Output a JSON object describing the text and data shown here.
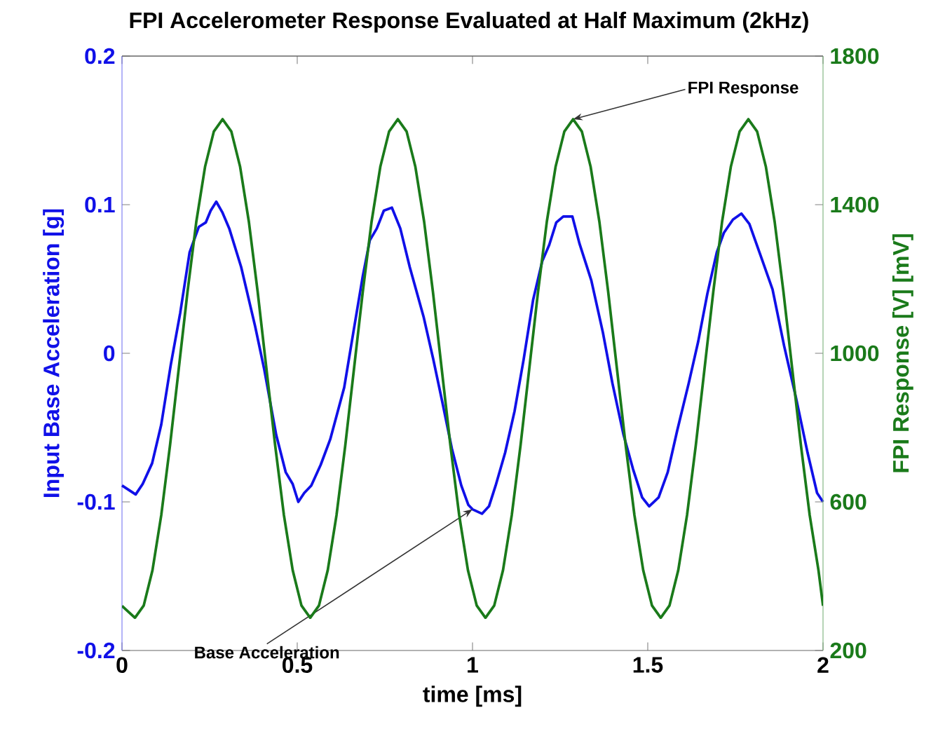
{
  "chart_data": {
    "type": "line",
    "title": "FPI Accelerometer Response Evaluated at Half Maximum (2kHz)",
    "xlabel": "time [ms]",
    "ylabel": "Input Base Acceleration [g]",
    "y2label": "FPI Response [V] [mV]",
    "xlim": [
      0,
      2
    ],
    "xticks": [
      0,
      0.5,
      1,
      1.5,
      2
    ],
    "ylim": [
      -0.2,
      0.2
    ],
    "yticks": [
      -0.2,
      -0.1,
      0,
      0.1,
      0.2
    ],
    "y2lim": [
      200,
      1800
    ],
    "y2ticks": [
      200,
      600,
      1000,
      1400,
      1800
    ],
    "grid": false,
    "marker": "none",
    "line_style": "solid",
    "series": [
      {
        "color": "#1010e8",
        "x": [
          0,
          0.039,
          0.059,
          0.086,
          0.112,
          0.139,
          0.166,
          0.193,
          0.219,
          0.239,
          0.253,
          0.269,
          0.286,
          0.306,
          0.34,
          0.38,
          0.406,
          0.44,
          0.467,
          0.487,
          0.503,
          0.52,
          0.54,
          0.567,
          0.594,
          0.634,
          0.66,
          0.687,
          0.707,
          0.727,
          0.747,
          0.77,
          0.794,
          0.821,
          0.861,
          0.888,
          0.914,
          0.941,
          0.968,
          0.988,
          1.0,
          1.027,
          1.047,
          1.066,
          1.093,
          1.12,
          1.146,
          1.173,
          1.199,
          1.219,
          1.239,
          1.259,
          1.285,
          1.305,
          1.339,
          1.372,
          1.399,
          1.431,
          1.458,
          1.484,
          1.504,
          1.531,
          1.557,
          1.584,
          1.617,
          1.644,
          1.67,
          1.697,
          1.717,
          1.743,
          1.767,
          1.79,
          1.823,
          1.856,
          1.889,
          1.923,
          1.956,
          1.983,
          2.0
        ],
        "values": [
          -0.089,
          -0.095,
          -0.088,
          -0.074,
          -0.048,
          -0.008,
          0.027,
          0.068,
          0.085,
          0.088,
          0.096,
          0.102,
          0.095,
          0.084,
          0.058,
          0.018,
          -0.011,
          -0.055,
          -0.08,
          -0.088,
          -0.1,
          -0.094,
          -0.089,
          -0.075,
          -0.058,
          -0.023,
          0.014,
          0.052,
          0.076,
          0.084,
          0.096,
          0.098,
          0.084,
          0.058,
          0.024,
          -0.004,
          -0.033,
          -0.064,
          -0.089,
          -0.102,
          -0.105,
          -0.108,
          -0.103,
          -0.089,
          -0.067,
          -0.039,
          -0.004,
          0.036,
          0.062,
          0.073,
          0.088,
          0.092,
          0.092,
          0.074,
          0.049,
          0.014,
          -0.02,
          -0.055,
          -0.078,
          -0.097,
          -0.103,
          -0.097,
          -0.08,
          -0.052,
          -0.02,
          0.008,
          0.04,
          0.068,
          0.081,
          0.09,
          0.094,
          0.087,
          0.065,
          0.043,
          0.005,
          -0.03,
          -0.067,
          -0.094,
          -0.1
        ]
      },
      {
        "color": "#1a7a1a",
        "axis": "y2",
        "x": [
          0,
          0.037,
          0.062,
          0.087,
          0.112,
          0.137,
          0.162,
          0.187,
          0.212,
          0.237,
          0.262,
          0.287,
          0.312,
          0.337,
          0.362,
          0.387,
          0.412,
          0.437,
          0.462,
          0.487,
          0.512,
          0.537,
          0.562,
          0.587,
          0.612,
          0.637,
          0.662,
          0.687,
          0.712,
          0.737,
          0.762,
          0.787,
          0.812,
          0.837,
          0.862,
          0.887,
          0.912,
          0.937,
          0.962,
          0.987,
          1.012,
          1.037,
          1.062,
          1.087,
          1.112,
          1.137,
          1.162,
          1.187,
          1.212,
          1.237,
          1.262,
          1.287,
          1.312,
          1.337,
          1.362,
          1.387,
          1.412,
          1.437,
          1.462,
          1.487,
          1.512,
          1.537,
          1.562,
          1.587,
          1.612,
          1.637,
          1.662,
          1.687,
          1.712,
          1.737,
          1.762,
          1.787,
          1.812,
          1.837,
          1.862,
          1.887,
          1.912,
          1.937,
          1.962,
          1.987,
          2.0
        ],
        "values": [
          320,
          288,
          321,
          416,
          564,
          752,
          959,
          1166,
          1354,
          1502,
          1597,
          1630,
          1597,
          1502,
          1354,
          1166,
          959,
          752,
          564,
          416,
          321,
          288,
          321,
          416,
          564,
          752,
          959,
          1166,
          1354,
          1502,
          1597,
          1630,
          1597,
          1502,
          1354,
          1166,
          959,
          752,
          564,
          416,
          321,
          288,
          321,
          416,
          564,
          752,
          959,
          1166,
          1354,
          1502,
          1597,
          1630,
          1597,
          1502,
          1354,
          1166,
          959,
          752,
          564,
          416,
          321,
          288,
          321,
          416,
          564,
          752,
          959,
          1166,
          1354,
          1502,
          1597,
          1630,
          1597,
          1502,
          1354,
          1166,
          959,
          752,
          564,
          416,
          320
        ]
      }
    ],
    "annotations": [
      {
        "text": "FPI Response",
        "x": 1.287,
        "y": 0.1575
      },
      {
        "text": "Base Acceleration",
        "x": 1.0,
        "y": -0.105
      }
    ]
  }
}
